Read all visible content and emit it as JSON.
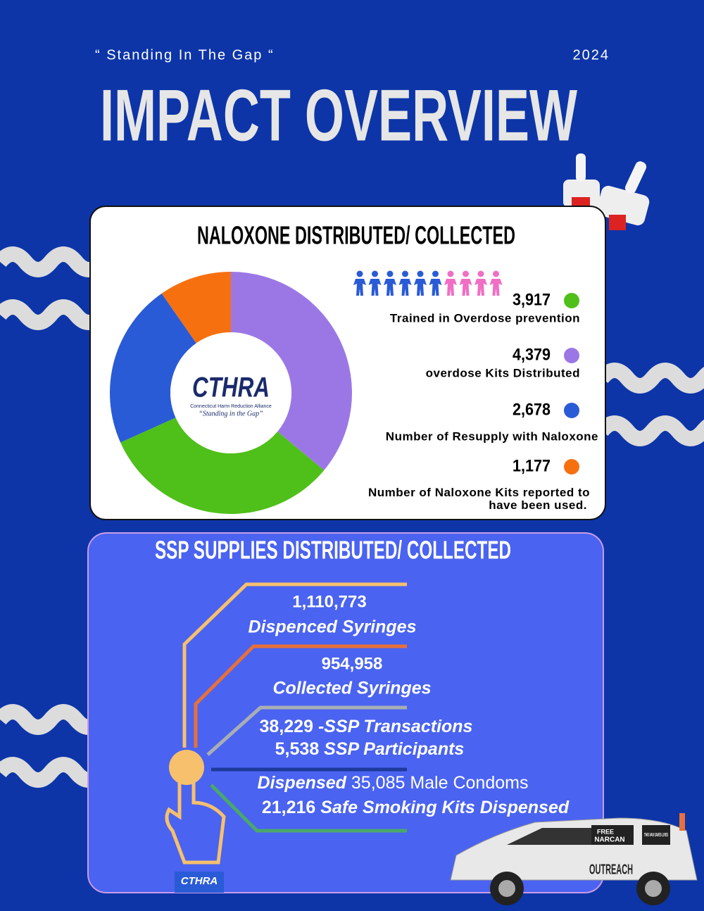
{
  "header": {
    "tagline": "“ Standing In The Gap “",
    "year": "2024",
    "title": "IMPACT OVERVIEW"
  },
  "naloxone": {
    "title": "NALOXONE DISTRIBUTED/ COLLECTED",
    "logo": {
      "name": "CTHRA",
      "subtitle": "Connecticut Harm Reduction Alliance",
      "tagline": "“Standing in the Gap”"
    },
    "chart_data": {
      "type": "donut",
      "categories": [
        "Trained in Overdose prevention",
        "overdose Kits Distributed",
        "Number of Resupply with Naloxone",
        "Number of Naloxone Kits reported to have been used."
      ],
      "values": [
        3917,
        4379,
        2678,
        1177
      ],
      "value_labels": [
        "3,917",
        "4,379",
        "2,678",
        "1,177"
      ],
      "colors": [
        "#4fbf1a",
        "#9b77e6",
        "#2a5bd6",
        "#f7700f"
      ]
    }
  },
  "ssp": {
    "title": "SSP SUPPLIES DISTRIBUTED/ COLLECTED",
    "syringes": [
      {
        "value": "1,110,773",
        "label": "Dispenced Syringes"
      },
      {
        "value": "954,958",
        "label": "Collected Syringes"
      }
    ],
    "transactions": {
      "value": "38,229",
      "label": "-SSP Transactions"
    },
    "participants": {
      "value": "5,538",
      "label": "SSP Participants"
    },
    "condoms": {
      "prefix": "Dispensed",
      "value": "35,085",
      "label": "Male Condoms"
    },
    "smoking_kits": {
      "value": "21,216",
      "label": "Safe Smoking Kits Dispensed"
    },
    "logo": "CTHRA"
  },
  "van": {
    "free": "FREE",
    "narcan": "NARCAN",
    "side": "OUTREACH",
    "sign": "THIS VAN SAVES LIVES"
  }
}
